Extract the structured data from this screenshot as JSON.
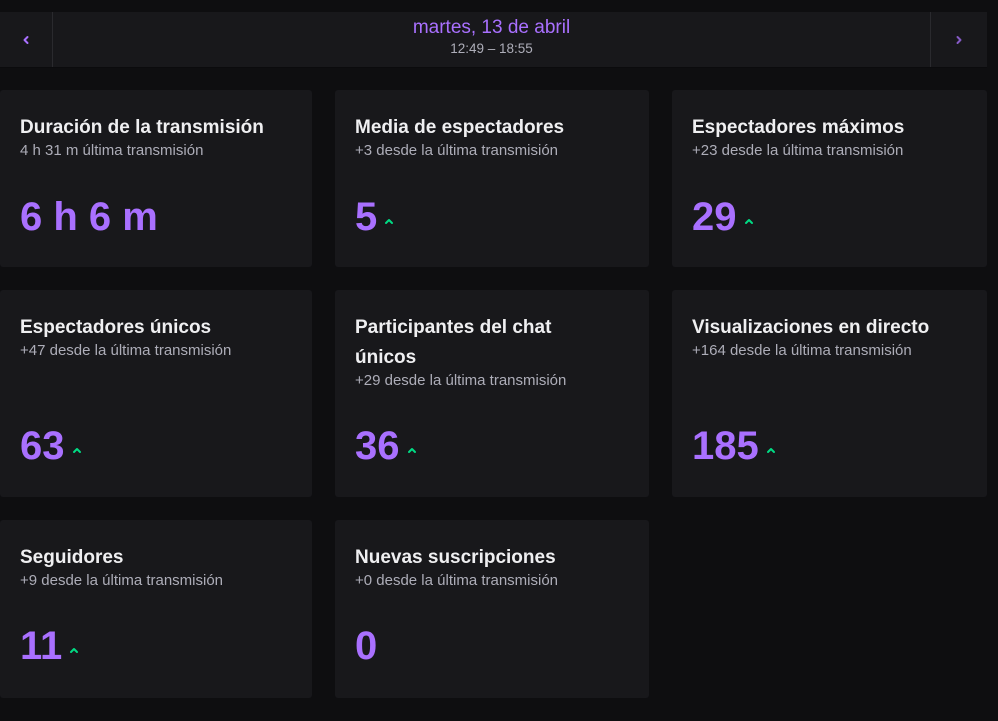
{
  "header": {
    "date": "martes, 13 de abril",
    "time_range": "12:49 – 18:55",
    "prev_icon": "chevron-left-icon",
    "next_icon": "chevron-right-icon"
  },
  "colors": {
    "background": "#0e0e10",
    "card": "#18181b",
    "accent": "#a970ff",
    "trend_up": "#00db84"
  },
  "stats": [
    {
      "title": "Duración de la transmisión",
      "subtitle": "4 h 31 m última transmisión",
      "value": "6 h 6 m",
      "trend": "none"
    },
    {
      "title": "Media de espectadores",
      "subtitle": "+3 desde la última transmisión",
      "value": "5",
      "trend": "up"
    },
    {
      "title": "Espectadores máximos",
      "subtitle": "+23 desde la última transmisión",
      "value": "29",
      "trend": "up"
    },
    {
      "title": "Espectadores únicos",
      "subtitle": "+47 desde la última transmisión",
      "value": "63",
      "trend": "up"
    },
    {
      "title": "Participantes del chat únicos",
      "subtitle": "+29 desde la última transmisión",
      "value": "36",
      "trend": "up"
    },
    {
      "title": "Visualizaciones en directo",
      "subtitle": "+164 desde la última transmisión",
      "value": "185",
      "trend": "up"
    },
    {
      "title": "Seguidores",
      "subtitle": "+9 desde la última transmisión",
      "value": "11",
      "trend": "up"
    },
    {
      "title": "Nuevas suscripciones",
      "subtitle": "+0 desde la última transmisión",
      "value": "0",
      "trend": "none"
    }
  ]
}
